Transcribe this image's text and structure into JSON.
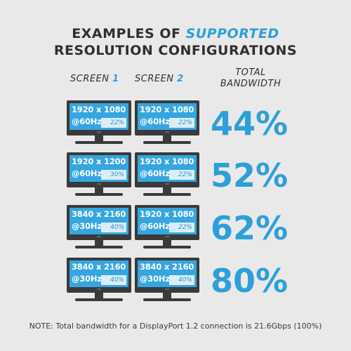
{
  "title": {
    "line1_prefix": "EXAMPLES OF ",
    "line1_accent": "SUPPORTED",
    "line2": "RESOLUTION CONFIGURATIONS"
  },
  "headers": {
    "screen1_label": "SCREEN ",
    "screen1_num": "1",
    "screen2_label": "SCREEN ",
    "screen2_num": "2",
    "total_line1": "TOTAL",
    "total_line2": "BANDWIDTH"
  },
  "rows": [
    {
      "screen1": {
        "res": "1920 x 1080",
        "hz": "@60Hz",
        "pct": "22%"
      },
      "screen2": {
        "res": "1920 x 1080",
        "hz": "@60Hz",
        "pct": "22%"
      },
      "total": "44%"
    },
    {
      "screen1": {
        "res": "1920 x 1200",
        "hz": "@60Hz",
        "pct": "30%"
      },
      "screen2": {
        "res": "1920 x 1080",
        "hz": "@60Hz",
        "pct": "22%"
      },
      "total": "52%"
    },
    {
      "screen1": {
        "res": "3840 x 2160",
        "hz": "@30Hz",
        "pct": "40%"
      },
      "screen2": {
        "res": "1920 x 1080",
        "hz": "@60Hz",
        "pct": "22%"
      },
      "total": "62%"
    },
    {
      "screen1": {
        "res": "3840 x 2160",
        "hz": "@30Hz",
        "pct": "40%"
      },
      "screen2": {
        "res": "3840 x 2160",
        "hz": "@30Hz",
        "pct": "40%"
      },
      "total": "80%"
    }
  ],
  "note": "NOTE: Total bandwidth for a DisplayPort 1.2 connection is 21.6Gbps (100%)",
  "colors": {
    "accent": "#2e9fd8",
    "screen": "#35a6e0",
    "bezel": "#3a3a3a",
    "background": "#e9e9e9"
  }
}
